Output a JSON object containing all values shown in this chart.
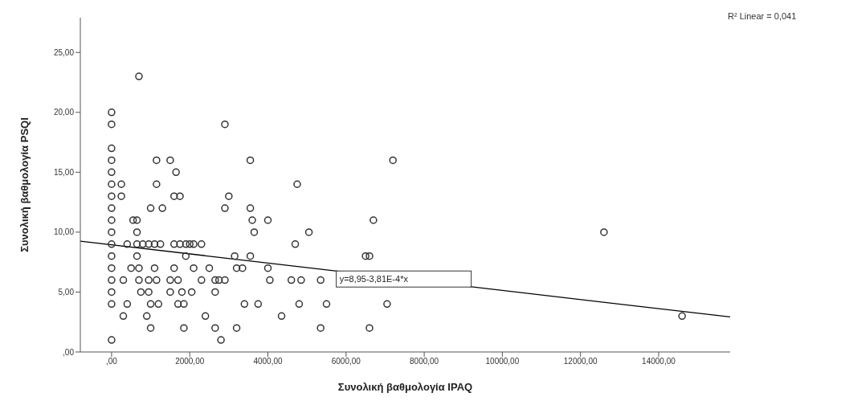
{
  "chart_data": {
    "type": "scatter",
    "xlabel": "Συνολική βαθμολογία IPAQ",
    "ylabel": "Συνολική βαθμολογία PSQI",
    "xlim": [
      -800,
      15830
    ],
    "ylim": [
      0,
      27.9
    ],
    "xticks": [
      {
        "value": 0,
        "label": ",00"
      },
      {
        "value": 2000,
        "label": "2000,00"
      },
      {
        "value": 4000,
        "label": "4000,00"
      },
      {
        "value": 6000,
        "label": "6000,00"
      },
      {
        "value": 8000,
        "label": "8000,00"
      },
      {
        "value": 10000,
        "label": "10000,00"
      },
      {
        "value": 12000,
        "label": "12000,00"
      },
      {
        "value": 14000,
        "label": "14000,00"
      }
    ],
    "yticks": [
      {
        "value": 0,
        "label": ",00"
      },
      {
        "value": 5,
        "label": "5,00"
      },
      {
        "value": 10,
        "label": "10,00"
      },
      {
        "value": 15,
        "label": "15,00"
      },
      {
        "value": 20,
        "label": "20,00"
      },
      {
        "value": 25,
        "label": "25,00"
      }
    ],
    "marker": "circle",
    "series": [
      {
        "color": "#333333",
        "x": [
          700,
          0,
          0,
          2900,
          0,
          0,
          1150,
          1500,
          3550,
          7200,
          0,
          1650,
          0,
          250,
          1150,
          4750,
          0,
          250,
          1600,
          1750,
          3000,
          0,
          1000,
          1300,
          2900,
          3550,
          0,
          550,
          650,
          3600,
          4000,
          6700,
          0,
          650,
          3650,
          5050,
          12600,
          0,
          400,
          650,
          800,
          950,
          1100,
          1250,
          1600,
          1750,
          1900,
          2000,
          2100,
          2300,
          4700,
          0,
          650,
          1900,
          3150,
          3550,
          6500,
          6600,
          0,
          500,
          700,
          1100,
          1600,
          2100,
          2500,
          3200,
          3350,
          4000,
          0,
          300,
          700,
          950,
          1150,
          1500,
          1700,
          2300,
          2650,
          2900,
          2750,
          4050,
          4600,
          4850,
          5350,
          0,
          750,
          950,
          1500,
          1800,
          2050,
          2650,
          0,
          400,
          1000,
          1200,
          1700,
          1850,
          3400,
          3750,
          4800,
          5500,
          7050,
          300,
          900,
          2400,
          4350,
          14600,
          1000,
          1850,
          2650,
          3200,
          5350,
          6600,
          0,
          2800
        ],
        "values": [
          23,
          20,
          19,
          19,
          17,
          16,
          16,
          16,
          16,
          16,
          15,
          15,
          14,
          14,
          14,
          14,
          13,
          13,
          13,
          13,
          13,
          12,
          12,
          12,
          12,
          12,
          11,
          11,
          11,
          11,
          11,
          11,
          10,
          10,
          10,
          10,
          10,
          9,
          9,
          9,
          9,
          9,
          9,
          9,
          9,
          9,
          9,
          9,
          9,
          9,
          9,
          8,
          8,
          8,
          8,
          8,
          8,
          8,
          7,
          7,
          7,
          7,
          7,
          7,
          7,
          7,
          7,
          7,
          6,
          6,
          6,
          6,
          6,
          6,
          6,
          6,
          6,
          6,
          6,
          6,
          6,
          6,
          6,
          5,
          5,
          5,
          5,
          5,
          5,
          5,
          4,
          4,
          4,
          4,
          4,
          4,
          4,
          4,
          4,
          4,
          4,
          3,
          3,
          3,
          3,
          3,
          2,
          2,
          2,
          2,
          2,
          2,
          1,
          1
        ]
      },
      {
        "type": "line",
        "marker": "none",
        "color": "#000000",
        "x": [
          -800,
          15830
        ],
        "values": [
          9.25,
          2.92
        ]
      }
    ],
    "annotations": [
      {
        "text": "y=8,95-3,81E-4*x",
        "x": 5750,
        "y": 6.76
      },
      "R² Linear = 0,041"
    ]
  }
}
